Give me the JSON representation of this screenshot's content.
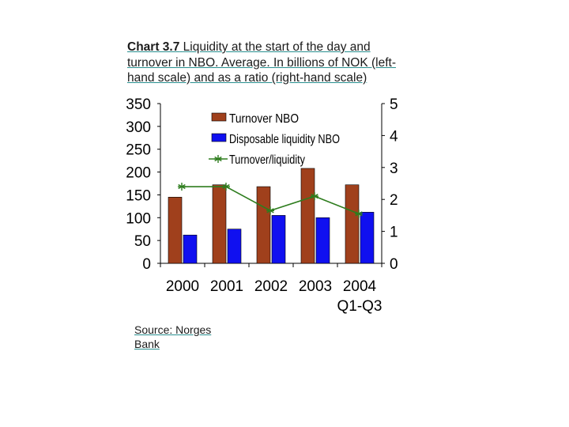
{
  "title": {
    "lead": "Chart 3.7",
    "text": "Liquidity at the start of the day and turnover in NBO. Average. In billions of NOK (left-hand scale) and as a ratio (right-hand scale)"
  },
  "source": "Source: Norges Bank",
  "colors": {
    "turnover": "#a0401c",
    "liquidity": "#1010f0",
    "ratio": "#2e7d1e"
  },
  "chart_data": {
    "type": "bar",
    "categories": [
      "2000",
      "2001",
      "2002",
      "2003",
      "2004"
    ],
    "category_sublabels": [
      "",
      "",
      "",
      "",
      "Q1-Q3"
    ],
    "series": [
      {
        "name": "Turnover NBO",
        "type": "bar",
        "axis": "left",
        "values": [
          145,
          172,
          168,
          208,
          172
        ]
      },
      {
        "name": "Disposable liquidity NBO",
        "type": "bar",
        "axis": "left",
        "values": [
          62,
          75,
          105,
          100,
          112
        ]
      },
      {
        "name": "Turnover/liquidity",
        "type": "line",
        "axis": "right",
        "marker": "asterisk",
        "values": [
          2.4,
          2.4,
          1.65,
          2.1,
          1.55
        ]
      }
    ],
    "y_left": {
      "min": 0,
      "max": 350,
      "ticks": [
        0,
        50,
        100,
        150,
        200,
        250,
        300,
        350
      ]
    },
    "y_right": {
      "min": 0,
      "max": 5,
      "ticks": [
        0,
        1,
        2,
        3,
        4,
        5
      ]
    },
    "legend_position": "top-center",
    "grid": false
  }
}
